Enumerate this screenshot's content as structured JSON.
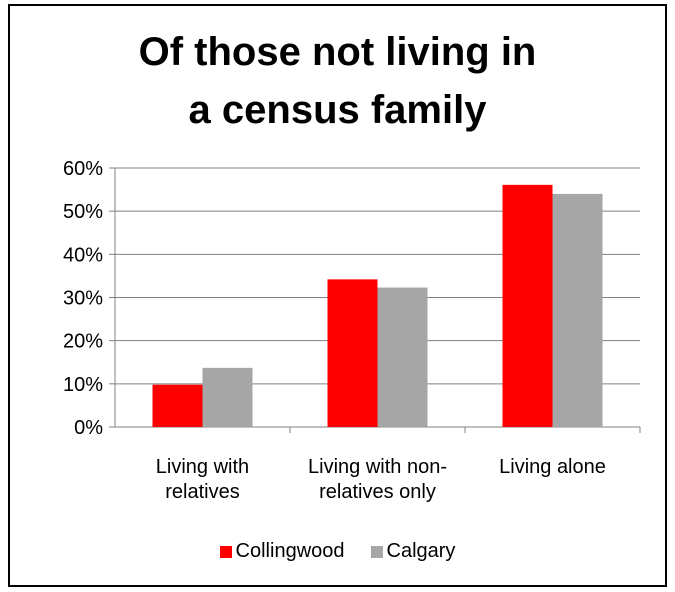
{
  "chart_data": {
    "type": "bar",
    "title_lines": [
      "Of those not living in",
      "a census family"
    ],
    "categories": [
      [
        "Living with",
        "relatives"
      ],
      [
        "Living with non-",
        "relatives only"
      ],
      [
        "Living alone"
      ]
    ],
    "series": [
      {
        "name": "Collingwood",
        "color": "#ff0000",
        "values": [
          0.098,
          0.342,
          0.561
        ]
      },
      {
        "name": "Calgary",
        "color": "#a6a6a6",
        "values": [
          0.137,
          0.323,
          0.54
        ]
      }
    ],
    "yticks": [
      "0%",
      "10%",
      "20%",
      "30%",
      "40%",
      "50%",
      "60%"
    ],
    "ylim": [
      0,
      0.6
    ],
    "grid": true,
    "legend_position": "bottom"
  }
}
